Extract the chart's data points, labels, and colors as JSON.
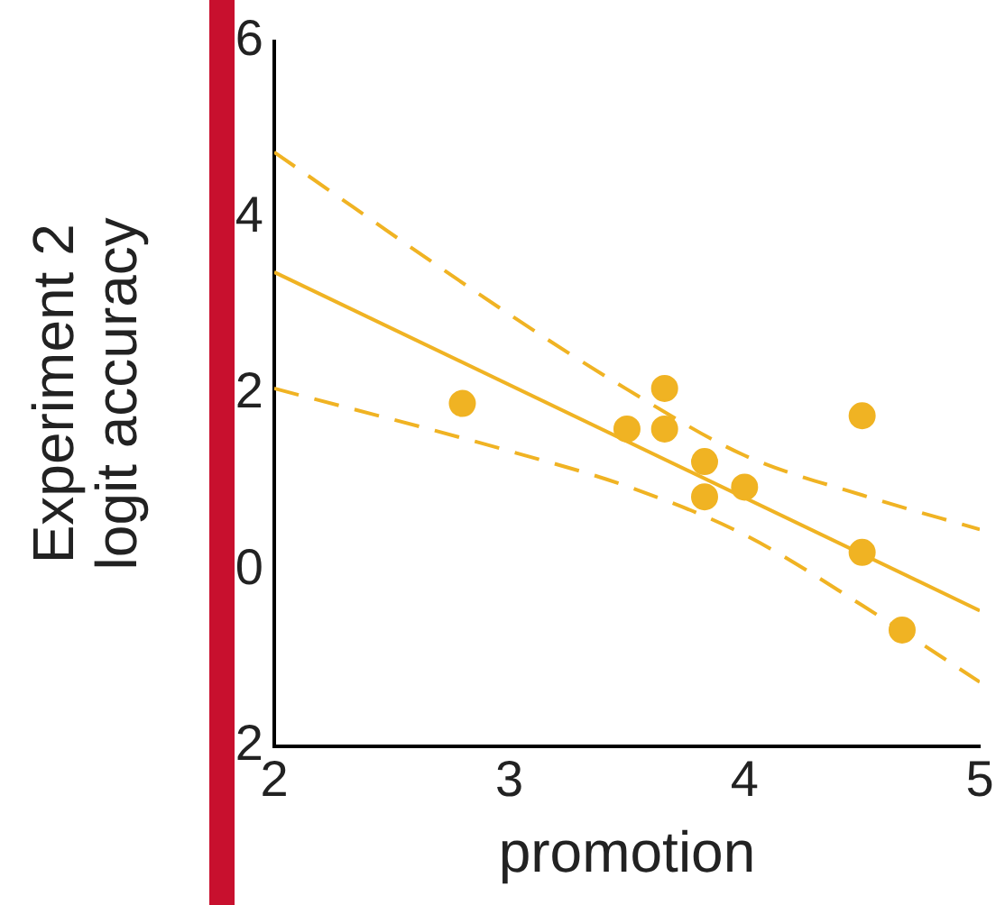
{
  "chart_data": {
    "type": "scatter",
    "xlabel": "promotion",
    "ylabel": "Experiment 2\nlogit accuracy",
    "xlim": [
      2,
      5
    ],
    "xticks": [
      2,
      3,
      4,
      5
    ],
    "ylim": [
      -2,
      6
    ],
    "yticks": [
      {
        "value": -2,
        "label": "2"
      },
      0,
      2,
      4,
      6
    ],
    "grid": false,
    "legend": false,
    "series": [
      {
        "type": "scatter",
        "color": "#f0b323",
        "marker": "circle",
        "x": [
          2.8,
          3.5,
          3.66,
          3.66,
          3.83,
          3.83,
          4.0,
          4.5,
          4.5,
          4.67
        ],
        "values": [
          1.89,
          1.6,
          2.06,
          1.6,
          1.23,
          0.83,
          0.94,
          1.75,
          0.2,
          -0.68
        ]
      },
      {
        "type": "line",
        "color": "#f0b323",
        "line_style": "solid",
        "marker": "none",
        "x": [
          2,
          5
        ],
        "values": [
          3.38,
          -0.46
        ]
      },
      {
        "type": "line",
        "color": "#f0b323",
        "line_style": "dashed",
        "marker": "none",
        "x": [
          2,
          3,
          3.5,
          4,
          4.5,
          5
        ],
        "values": [
          4.74,
          2.9,
          2.05,
          1.3,
          0.85,
          0.46
        ]
      },
      {
        "type": "line",
        "color": "#f0b323",
        "line_style": "dashed",
        "marker": "none",
        "x": [
          2,
          3,
          3.5,
          4,
          4.5,
          5
        ],
        "values": [
          2.06,
          1.35,
          0.95,
          0.4,
          -0.4,
          -1.27
        ]
      }
    ]
  }
}
